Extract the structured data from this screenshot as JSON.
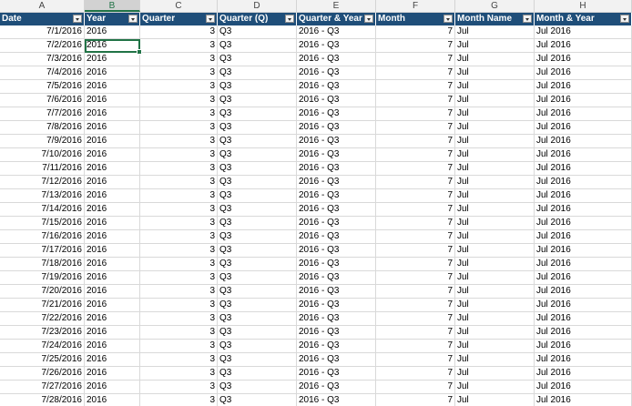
{
  "column_letters": [
    "A",
    "B",
    "C",
    "D",
    "E",
    "F",
    "G",
    "H"
  ],
  "selected_column": "B",
  "headers": [
    "Date",
    "Year",
    "Quarter",
    "Quarter (Q)",
    "Quarter & Year",
    "Month",
    "Month Name",
    "Month & Year"
  ],
  "rows": [
    [
      "7/1/2016",
      "2016",
      "3",
      "Q3",
      "2016 - Q3",
      "7",
      "Jul",
      "Jul 2016"
    ],
    [
      "7/2/2016",
      "2016",
      "3",
      "Q3",
      "2016 - Q3",
      "7",
      "Jul",
      "Jul 2016"
    ],
    [
      "7/3/2016",
      "2016",
      "3",
      "Q3",
      "2016 - Q3",
      "7",
      "Jul",
      "Jul 2016"
    ],
    [
      "7/4/2016",
      "2016",
      "3",
      "Q3",
      "2016 - Q3",
      "7",
      "Jul",
      "Jul 2016"
    ],
    [
      "7/5/2016",
      "2016",
      "3",
      "Q3",
      "2016 - Q3",
      "7",
      "Jul",
      "Jul 2016"
    ],
    [
      "7/6/2016",
      "2016",
      "3",
      "Q3",
      "2016 - Q3",
      "7",
      "Jul",
      "Jul 2016"
    ],
    [
      "7/7/2016",
      "2016",
      "3",
      "Q3",
      "2016 - Q3",
      "7",
      "Jul",
      "Jul 2016"
    ],
    [
      "7/8/2016",
      "2016",
      "3",
      "Q3",
      "2016 - Q3",
      "7",
      "Jul",
      "Jul 2016"
    ],
    [
      "7/9/2016",
      "2016",
      "3",
      "Q3",
      "2016 - Q3",
      "7",
      "Jul",
      "Jul 2016"
    ],
    [
      "7/10/2016",
      "2016",
      "3",
      "Q3",
      "2016 - Q3",
      "7",
      "Jul",
      "Jul 2016"
    ],
    [
      "7/11/2016",
      "2016",
      "3",
      "Q3",
      "2016 - Q3",
      "7",
      "Jul",
      "Jul 2016"
    ],
    [
      "7/12/2016",
      "2016",
      "3",
      "Q3",
      "2016 - Q3",
      "7",
      "Jul",
      "Jul 2016"
    ],
    [
      "7/13/2016",
      "2016",
      "3",
      "Q3",
      "2016 - Q3",
      "7",
      "Jul",
      "Jul 2016"
    ],
    [
      "7/14/2016",
      "2016",
      "3",
      "Q3",
      "2016 - Q3",
      "7",
      "Jul",
      "Jul 2016"
    ],
    [
      "7/15/2016",
      "2016",
      "3",
      "Q3",
      "2016 - Q3",
      "7",
      "Jul",
      "Jul 2016"
    ],
    [
      "7/16/2016",
      "2016",
      "3",
      "Q3",
      "2016 - Q3",
      "7",
      "Jul",
      "Jul 2016"
    ],
    [
      "7/17/2016",
      "2016",
      "3",
      "Q3",
      "2016 - Q3",
      "7",
      "Jul",
      "Jul 2016"
    ],
    [
      "7/18/2016",
      "2016",
      "3",
      "Q3",
      "2016 - Q3",
      "7",
      "Jul",
      "Jul 2016"
    ],
    [
      "7/19/2016",
      "2016",
      "3",
      "Q3",
      "2016 - Q3",
      "7",
      "Jul",
      "Jul 2016"
    ],
    [
      "7/20/2016",
      "2016",
      "3",
      "Q3",
      "2016 - Q3",
      "7",
      "Jul",
      "Jul 2016"
    ],
    [
      "7/21/2016",
      "2016",
      "3",
      "Q3",
      "2016 - Q3",
      "7",
      "Jul",
      "Jul 2016"
    ],
    [
      "7/22/2016",
      "2016",
      "3",
      "Q3",
      "2016 - Q3",
      "7",
      "Jul",
      "Jul 2016"
    ],
    [
      "7/23/2016",
      "2016",
      "3",
      "Q3",
      "2016 - Q3",
      "7",
      "Jul",
      "Jul 2016"
    ],
    [
      "7/24/2016",
      "2016",
      "3",
      "Q3",
      "2016 - Q3",
      "7",
      "Jul",
      "Jul 2016"
    ],
    [
      "7/25/2016",
      "2016",
      "3",
      "Q3",
      "2016 - Q3",
      "7",
      "Jul",
      "Jul 2016"
    ],
    [
      "7/26/2016",
      "2016",
      "3",
      "Q3",
      "2016 - Q3",
      "7",
      "Jul",
      "Jul 2016"
    ],
    [
      "7/27/2016",
      "2016",
      "3",
      "Q3",
      "2016 - Q3",
      "7",
      "Jul",
      "Jul 2016"
    ],
    [
      "7/28/2016",
      "2016",
      "3",
      "Q3",
      "2016 - Q3",
      "7",
      "Jul",
      "Jul 2016"
    ]
  ],
  "active_cell": {
    "row": 1,
    "col": 1
  },
  "colors": {
    "header_bg": "#1f4e79",
    "selection": "#217346",
    "gridline": "#d9d9d9"
  },
  "icons": {
    "filter": "filter-dropdown-icon"
  }
}
